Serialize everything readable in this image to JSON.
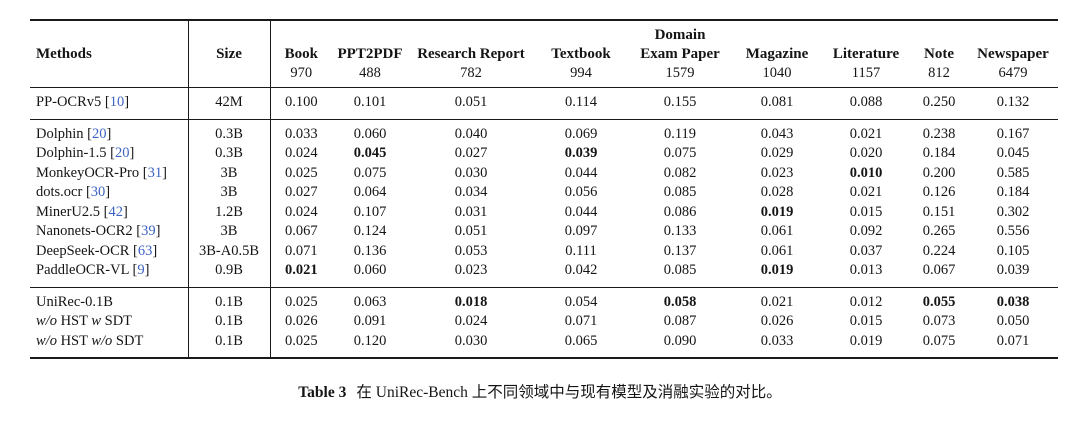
{
  "colors": {
    "citation_blue": "#3d63c4",
    "rule_black": "#1a1a1a"
  },
  "table": {
    "columns": [
      {
        "id": "methods",
        "label": "Methods",
        "count": ""
      },
      {
        "id": "size",
        "label": "Size",
        "count": ""
      },
      {
        "id": "book",
        "label": "Book",
        "count": "970"
      },
      {
        "id": "ppt2pdf",
        "label": "PPT2PDF",
        "count": "488"
      },
      {
        "id": "research-report",
        "label": "Research Report",
        "count": "782"
      },
      {
        "id": "textbook",
        "label": "Textbook",
        "count": "994"
      },
      {
        "id": "domain-exam-paper",
        "pre": "Domain",
        "label": "Exam Paper",
        "count": "1579"
      },
      {
        "id": "magazine",
        "label": "Magazine",
        "count": "1040"
      },
      {
        "id": "literature",
        "label": "Literature",
        "count": "1157"
      },
      {
        "id": "note",
        "label": "Note",
        "count": "812"
      },
      {
        "id": "newspaper",
        "label": "Newspaper",
        "count": "6479"
      }
    ],
    "groups": [
      {
        "rows": [
          {
            "name_parts": [
              {
                "text": "PP-OCRv5",
                "italic": false
              }
            ],
            "cite": "10",
            "size": "42M",
            "values": [
              "0.100",
              "0.101",
              "0.051",
              "0.114",
              "0.155",
              "0.081",
              "0.088",
              "0.250",
              "0.132"
            ],
            "bold": []
          }
        ]
      },
      {
        "rows": [
          {
            "name_parts": [
              {
                "text": "Dolphin",
                "italic": false
              }
            ],
            "cite": "20",
            "size": "0.3B",
            "values": [
              "0.033",
              "0.060",
              "0.040",
              "0.069",
              "0.119",
              "0.043",
              "0.021",
              "0.238",
              "0.167"
            ],
            "bold": []
          },
          {
            "name_parts": [
              {
                "text": "Dolphin-1.5",
                "italic": false
              }
            ],
            "cite": "20",
            "size": "0.3B",
            "values": [
              "0.024",
              "0.045",
              "0.027",
              "0.039",
              "0.075",
              "0.029",
              "0.020",
              "0.184",
              "0.045"
            ],
            "bold": [
              1,
              3
            ]
          },
          {
            "name_parts": [
              {
                "text": "MonkeyOCR-Pro",
                "italic": false
              }
            ],
            "cite": "31",
            "size": "3B",
            "values": [
              "0.025",
              "0.075",
              "0.030",
              "0.044",
              "0.082",
              "0.023",
              "0.010",
              "0.200",
              "0.585"
            ],
            "bold": [
              6
            ]
          },
          {
            "name_parts": [
              {
                "text": "dots.ocr",
                "italic": false
              }
            ],
            "cite": "30",
            "size": "3B",
            "values": [
              "0.027",
              "0.064",
              "0.034",
              "0.056",
              "0.085",
              "0.028",
              "0.021",
              "0.126",
              "0.184"
            ],
            "bold": []
          },
          {
            "name_parts": [
              {
                "text": "MinerU2.5",
                "italic": false
              }
            ],
            "cite": "42",
            "size": "1.2B",
            "values": [
              "0.024",
              "0.107",
              "0.031",
              "0.044",
              "0.086",
              "0.019",
              "0.015",
              "0.151",
              "0.302"
            ],
            "bold": [
              5
            ]
          },
          {
            "name_parts": [
              {
                "text": "Nanonets-OCR2",
                "italic": false
              }
            ],
            "cite": "39",
            "size": "3B",
            "values": [
              "0.067",
              "0.124",
              "0.051",
              "0.097",
              "0.133",
              "0.061",
              "0.092",
              "0.265",
              "0.556"
            ],
            "bold": []
          },
          {
            "name_parts": [
              {
                "text": "DeepSeek-OCR",
                "italic": false
              }
            ],
            "cite": "63",
            "size": "3B-A0.5B",
            "values": [
              "0.071",
              "0.136",
              "0.053",
              "0.111",
              "0.137",
              "0.061",
              "0.037",
              "0.224",
              "0.105"
            ],
            "bold": []
          },
          {
            "name_parts": [
              {
                "text": "PaddleOCR-VL",
                "italic": false
              }
            ],
            "cite": "9",
            "size": "0.9B",
            "values": [
              "0.021",
              "0.060",
              "0.023",
              "0.042",
              "0.085",
              "0.019",
              "0.013",
              "0.067",
              "0.039"
            ],
            "bold": [
              0,
              5
            ]
          }
        ]
      },
      {
        "rows": [
          {
            "name_parts": [
              {
                "text": "UniRec-0.1B",
                "italic": false
              }
            ],
            "cite": null,
            "size": "0.1B",
            "values": [
              "0.025",
              "0.063",
              "0.018",
              "0.054",
              "0.058",
              "0.021",
              "0.012",
              "0.055",
              "0.038"
            ],
            "bold": [
              2,
              4,
              7,
              8
            ]
          },
          {
            "name_parts": [
              {
                "text": "w/o",
                "italic": true
              },
              {
                "text": " HST ",
                "italic": false
              },
              {
                "text": "w",
                "italic": true
              },
              {
                "text": " SDT",
                "italic": false
              }
            ],
            "cite": null,
            "size": "0.1B",
            "values": [
              "0.026",
              "0.091",
              "0.024",
              "0.071",
              "0.087",
              "0.026",
              "0.015",
              "0.073",
              "0.050"
            ],
            "bold": []
          },
          {
            "name_parts": [
              {
                "text": "w/o",
                "italic": true
              },
              {
                "text": " HST ",
                "italic": false
              },
              {
                "text": "w/o",
                "italic": true
              },
              {
                "text": " SDT",
                "italic": false
              }
            ],
            "cite": null,
            "size": "0.1B",
            "values": [
              "0.025",
              "0.120",
              "0.030",
              "0.065",
              "0.090",
              "0.033",
              "0.019",
              "0.075",
              "0.071"
            ],
            "bold": []
          }
        ]
      }
    ]
  },
  "caption": {
    "label": "Table 3",
    "text": "在 UniRec-Bench 上不同领域中与现有模型及消融实验的对比。"
  }
}
